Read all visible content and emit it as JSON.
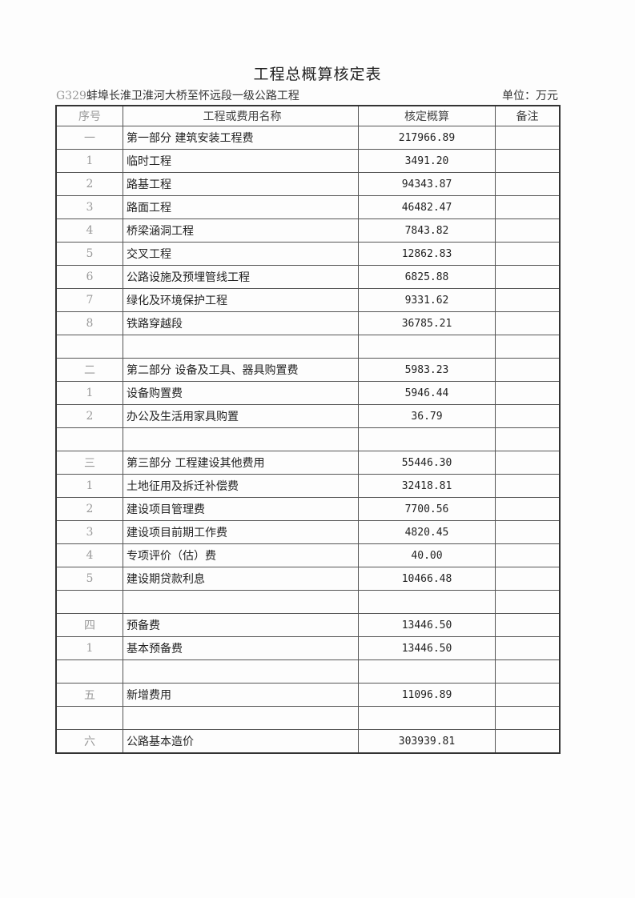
{
  "title": "工程总概算核定表",
  "project_code": "G329",
  "project_name": "蚌埠长淮卫淮河大桥至怀远段一级公路工程",
  "unit": "单位：万元",
  "headers": [
    "序号",
    "工程或费用名称",
    "核定概算",
    "备注"
  ],
  "rows": [
    {
      "seq": "一",
      "name": "第一部分  建筑安装工程费",
      "amount": "217966.89",
      "note": ""
    },
    {
      "seq": "1",
      "name": "临时工程",
      "amount": "3491.20",
      "note": ""
    },
    {
      "seq": "2",
      "name": "路基工程",
      "amount": "94343.87",
      "note": ""
    },
    {
      "seq": "3",
      "name": "路面工程",
      "amount": "46482.47",
      "note": ""
    },
    {
      "seq": "4",
      "name": "桥梁涵洞工程",
      "amount": "7843.82",
      "note": ""
    },
    {
      "seq": "5",
      "name": "交叉工程",
      "amount": "12862.83",
      "note": ""
    },
    {
      "seq": "6",
      "name": "公路设施及预埋管线工程",
      "amount": "6825.88",
      "note": ""
    },
    {
      "seq": "7",
      "name": "绿化及环境保护工程",
      "amount": "9331.62",
      "note": ""
    },
    {
      "seq": "8",
      "name": "铁路穿越段",
      "amount": "36785.21",
      "note": ""
    },
    {
      "seq": "",
      "name": "",
      "amount": "",
      "note": ""
    },
    {
      "seq": "二",
      "name": "第二部分  设备及工具、器具购置费",
      "amount": "5983.23",
      "note": ""
    },
    {
      "seq": "1",
      "name": "设备购置费",
      "amount": "5946.44",
      "note": ""
    },
    {
      "seq": "2",
      "name": "办公及生活用家具购置",
      "amount": "36.79",
      "note": ""
    },
    {
      "seq": "",
      "name": "",
      "amount": "",
      "note": ""
    },
    {
      "seq": "三",
      "name": "第三部分  工程建设其他费用",
      "amount": "55446.30",
      "note": ""
    },
    {
      "seq": "1",
      "name": "土地征用及拆迁补偿费",
      "amount": "32418.81",
      "note": ""
    },
    {
      "seq": "2",
      "name": "建设项目管理费",
      "amount": "7700.56",
      "note": ""
    },
    {
      "seq": "3",
      "name": "建设项目前期工作费",
      "amount": "4820.45",
      "note": ""
    },
    {
      "seq": "4",
      "name": "专项评价（估）费",
      "amount": "40.00",
      "note": ""
    },
    {
      "seq": "5",
      "name": "建设期贷款利息",
      "amount": "10466.48",
      "note": ""
    },
    {
      "seq": "",
      "name": "",
      "amount": "",
      "note": ""
    },
    {
      "seq": "四",
      "name": "预备费",
      "amount": "13446.50",
      "note": ""
    },
    {
      "seq": "1",
      "name": "基本预备费",
      "amount": "13446.50",
      "note": ""
    },
    {
      "seq": "",
      "name": "",
      "amount": "",
      "note": ""
    },
    {
      "seq": "五",
      "name": "新增费用",
      "amount": "11096.89",
      "note": ""
    },
    {
      "seq": "",
      "name": "",
      "amount": "",
      "note": ""
    },
    {
      "seq": "六",
      "name": "公路基本造价",
      "amount": "303939.81",
      "note": ""
    }
  ]
}
